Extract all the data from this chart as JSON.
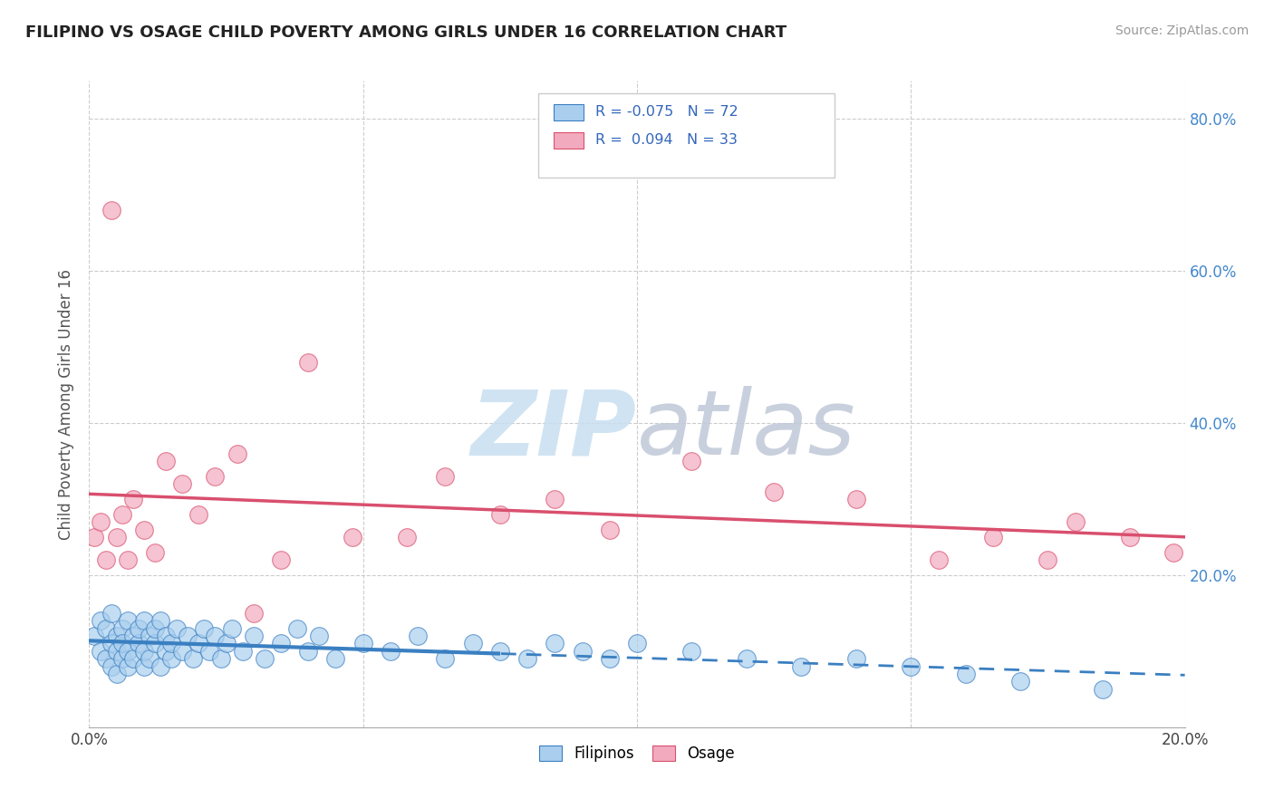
{
  "title": "FILIPINO VS OSAGE CHILD POVERTY AMONG GIRLS UNDER 16 CORRELATION CHART",
  "source": "Source: ZipAtlas.com",
  "ylabel": "Child Poverty Among Girls Under 16",
  "xlim": [
    0.0,
    0.2
  ],
  "ylim": [
    0.0,
    0.85
  ],
  "xticks": [
    0.0,
    0.05,
    0.1,
    0.15,
    0.2
  ],
  "xtick_labels": [
    "0.0%",
    "",
    "",
    "",
    "20.0%"
  ],
  "yticks": [
    0.0,
    0.2,
    0.4,
    0.6,
    0.8
  ],
  "ytick_labels_right": [
    "",
    "20.0%",
    "40.0%",
    "60.0%",
    "80.0%"
  ],
  "filipino_color": "#aacfee",
  "osage_color": "#f2aabe",
  "trend_filipino_color": "#3a7fc1",
  "trend_osage_color": "#d94f6e",
  "filipino_x": [
    0.001,
    0.002,
    0.002,
    0.003,
    0.003,
    0.004,
    0.004,
    0.004,
    0.005,
    0.005,
    0.005,
    0.006,
    0.006,
    0.006,
    0.007,
    0.007,
    0.007,
    0.008,
    0.008,
    0.009,
    0.009,
    0.01,
    0.01,
    0.01,
    0.011,
    0.011,
    0.012,
    0.012,
    0.013,
    0.013,
    0.014,
    0.014,
    0.015,
    0.015,
    0.016,
    0.017,
    0.018,
    0.019,
    0.02,
    0.021,
    0.022,
    0.023,
    0.024,
    0.025,
    0.026,
    0.028,
    0.03,
    0.032,
    0.035,
    0.038,
    0.04,
    0.042,
    0.045,
    0.05,
    0.055,
    0.06,
    0.065,
    0.07,
    0.075,
    0.08,
    0.085,
    0.09,
    0.095,
    0.1,
    0.11,
    0.12,
    0.13,
    0.14,
    0.15,
    0.16,
    0.17,
    0.185
  ],
  "filipino_y": [
    0.12,
    0.1,
    0.14,
    0.09,
    0.13,
    0.08,
    0.11,
    0.15,
    0.07,
    0.12,
    0.1,
    0.09,
    0.13,
    0.11,
    0.08,
    0.14,
    0.1,
    0.12,
    0.09,
    0.11,
    0.13,
    0.08,
    0.14,
    0.1,
    0.12,
    0.09,
    0.11,
    0.13,
    0.08,
    0.14,
    0.1,
    0.12,
    0.09,
    0.11,
    0.13,
    0.1,
    0.12,
    0.09,
    0.11,
    0.13,
    0.1,
    0.12,
    0.09,
    0.11,
    0.13,
    0.1,
    0.12,
    0.09,
    0.11,
    0.13,
    0.1,
    0.12,
    0.09,
    0.11,
    0.1,
    0.12,
    0.09,
    0.11,
    0.1,
    0.09,
    0.11,
    0.1,
    0.09,
    0.11,
    0.1,
    0.09,
    0.08,
    0.09,
    0.08,
    0.07,
    0.06,
    0.05
  ],
  "osage_x": [
    0.001,
    0.002,
    0.003,
    0.004,
    0.005,
    0.006,
    0.007,
    0.008,
    0.01,
    0.012,
    0.014,
    0.017,
    0.02,
    0.023,
    0.027,
    0.03,
    0.035,
    0.04,
    0.048,
    0.058,
    0.065,
    0.075,
    0.085,
    0.095,
    0.11,
    0.125,
    0.14,
    0.155,
    0.165,
    0.175,
    0.18,
    0.19,
    0.198
  ],
  "osage_y": [
    0.25,
    0.27,
    0.22,
    0.68,
    0.25,
    0.28,
    0.22,
    0.3,
    0.26,
    0.23,
    0.35,
    0.32,
    0.28,
    0.33,
    0.36,
    0.15,
    0.22,
    0.48,
    0.25,
    0.25,
    0.33,
    0.28,
    0.3,
    0.26,
    0.35,
    0.31,
    0.3,
    0.22,
    0.25,
    0.22,
    0.27,
    0.25,
    0.23
  ],
  "trend_solid_end": 0.075,
  "watermark_zip_color": "#c8def0",
  "watermark_atlas_color": "#c0c8d8"
}
